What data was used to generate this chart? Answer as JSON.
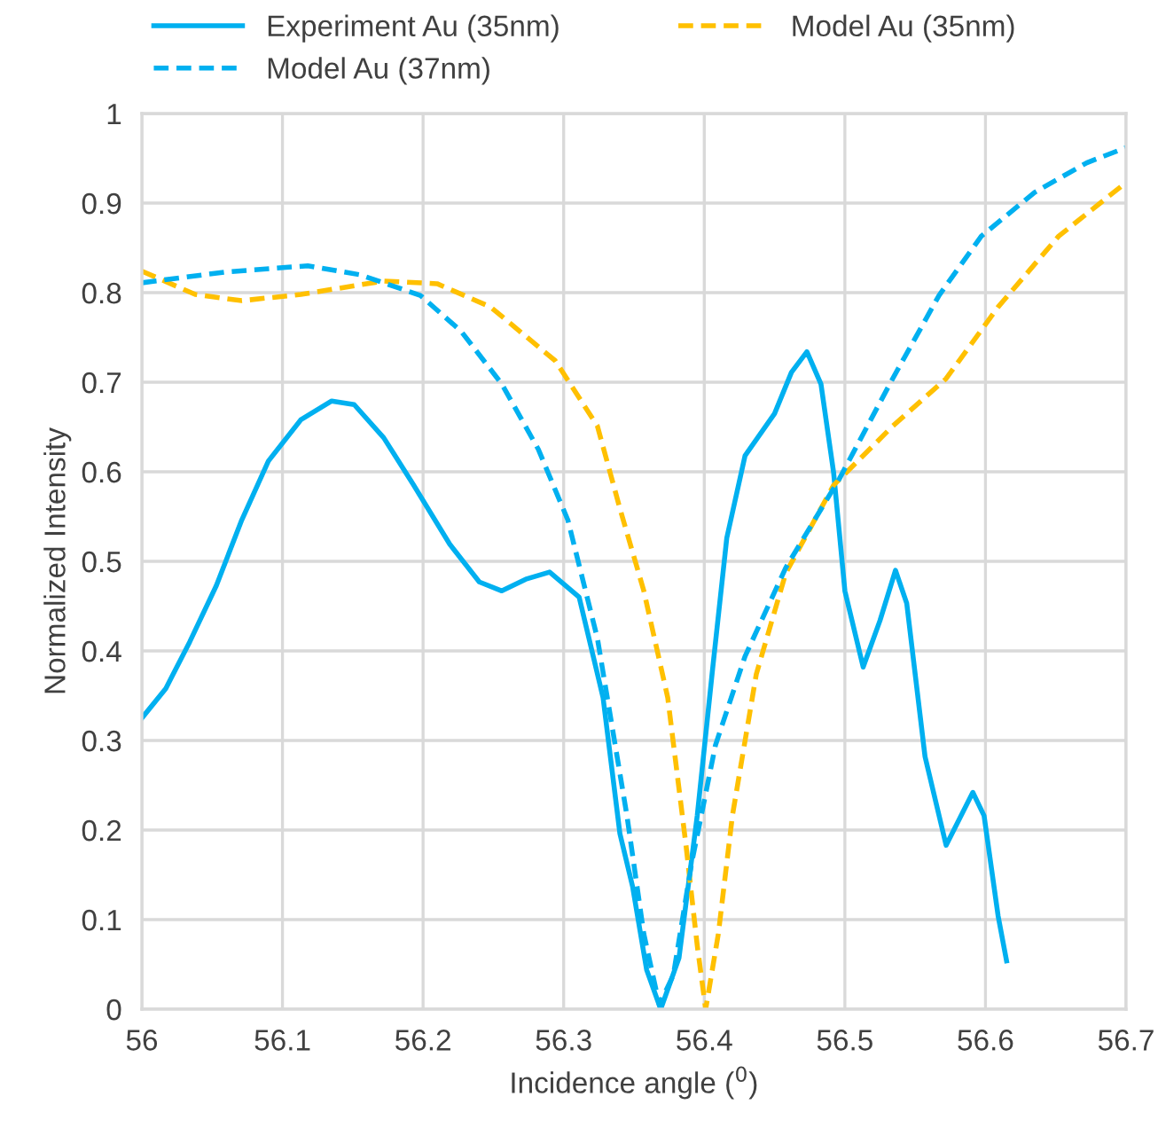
{
  "chart_data": {
    "type": "line",
    "xlabel": "Incidence angle ($^{0}$)",
    "ylabel": "Normalized Intensity",
    "xlim": [
      56,
      56.7
    ],
    "xticks": [
      56,
      56.1,
      56.2,
      56.3,
      56.4,
      56.5,
      56.6,
      56.7
    ],
    "ylim": [
      0,
      1
    ],
    "yticks": [
      0,
      0.1,
      0.2,
      0.3,
      0.4,
      0.5,
      0.6,
      0.7,
      0.8,
      0.9,
      1
    ],
    "grid": true,
    "legend": "top",
    "marker": "none",
    "series": [
      {
        "name": "Experiment Au (35nm)",
        "color": "#00b0f0",
        "line_style": "solid",
        "x": [
          56.0,
          56.017,
          56.034,
          56.053,
          56.071,
          56.09,
          56.113,
          56.135,
          56.151,
          56.172,
          56.193,
          56.219,
          56.24,
          56.256,
          56.273,
          56.29,
          56.311,
          56.328,
          56.34,
          56.349,
          56.359,
          56.369,
          56.382,
          56.395,
          56.406,
          56.416,
          56.429,
          56.45,
          56.462,
          56.473,
          56.483,
          56.492,
          56.5,
          56.513,
          56.525,
          56.536,
          56.544,
          56.557,
          56.572,
          56.591,
          56.599,
          56.609,
          56.615
        ],
        "values": [
          0.325,
          0.358,
          0.41,
          0.473,
          0.546,
          0.612,
          0.658,
          0.679,
          0.675,
          0.638,
          0.586,
          0.519,
          0.477,
          0.467,
          0.48,
          0.488,
          0.46,
          0.348,
          0.196,
          0.137,
          0.044,
          0.0,
          0.057,
          0.216,
          0.381,
          0.526,
          0.618,
          0.665,
          0.711,
          0.734,
          0.698,
          0.599,
          0.467,
          0.382,
          0.434,
          0.49,
          0.453,
          0.282,
          0.183,
          0.242,
          0.216,
          0.104,
          0.054
        ]
      },
      {
        "name": "Model Au (35nm)",
        "color": "#ffc000",
        "line_style": "dashed",
        "x": [
          56.0,
          56.038,
          56.071,
          56.113,
          56.172,
          56.21,
          56.248,
          56.294,
          56.324,
          56.34,
          56.357,
          56.374,
          56.387,
          56.395,
          56.401,
          56.41,
          56.42,
          56.437,
          56.458,
          56.492,
          56.534,
          56.572,
          56.609,
          56.652,
          56.7
        ],
        "values": [
          0.824,
          0.798,
          0.791,
          0.798,
          0.813,
          0.81,
          0.784,
          0.724,
          0.651,
          0.559,
          0.467,
          0.348,
          0.183,
          0.071,
          0.0,
          0.084,
          0.216,
          0.374,
          0.487,
          0.585,
          0.651,
          0.704,
          0.784,
          0.863,
          0.923
        ]
      },
      {
        "name": "Model Au (37nm)",
        "color": "#00b0f0",
        "line_style": "dashed",
        "x": [
          56.0,
          56.059,
          56.118,
          56.155,
          56.198,
          56.227,
          56.256,
          56.282,
          56.303,
          56.324,
          56.345,
          56.357,
          56.368,
          56.378,
          56.391,
          56.408,
          56.429,
          56.458,
          56.496,
          56.534,
          56.567,
          56.597,
          56.635,
          56.672,
          56.7
        ],
        "values": [
          0.811,
          0.823,
          0.83,
          0.82,
          0.797,
          0.757,
          0.698,
          0.625,
          0.546,
          0.414,
          0.216,
          0.084,
          0.005,
          0.038,
          0.163,
          0.295,
          0.394,
          0.493,
          0.592,
          0.704,
          0.797,
          0.863,
          0.912,
          0.945,
          0.962
        ]
      }
    ]
  }
}
